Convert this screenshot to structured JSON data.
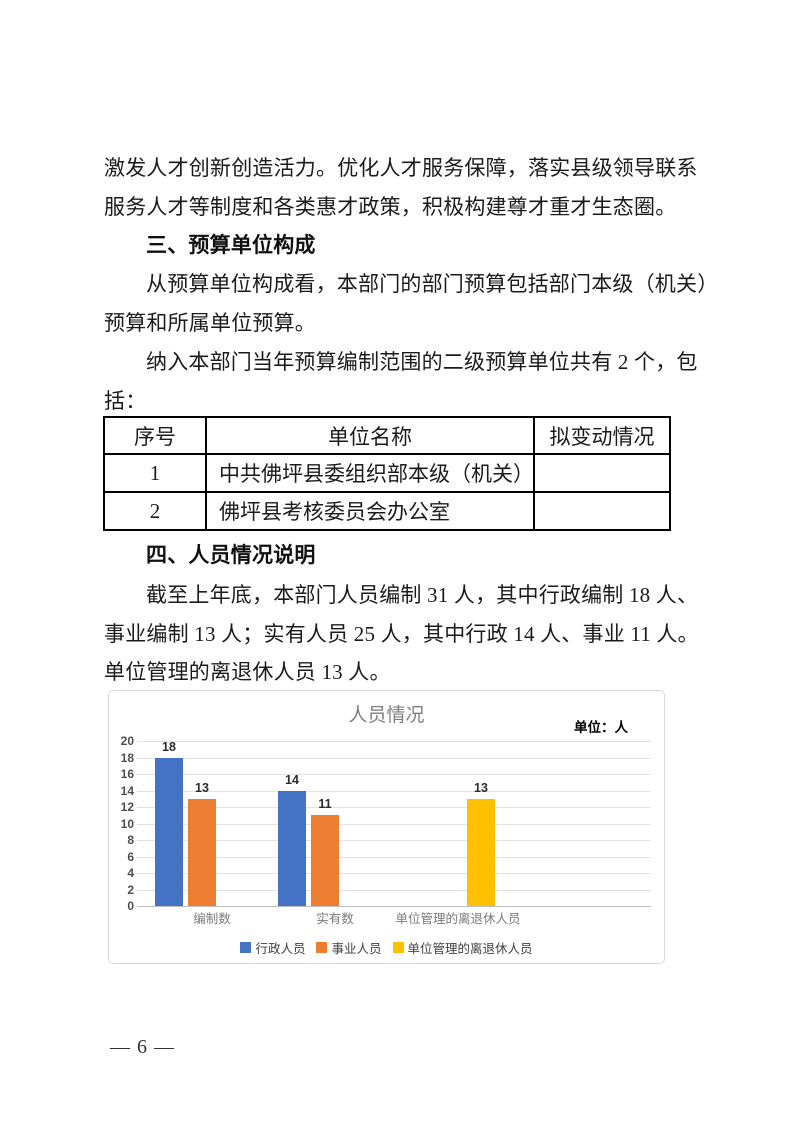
{
  "document": {
    "paragraph_top": {
      "lines": [
        "激发人才创新创造活力。优化人才服务保障，落实县级领导联系",
        "服务人才等制度和各类惠才政策，积极构建尊才重才生态圈。"
      ]
    },
    "section3": {
      "heading": "三、预算单位构成",
      "para1_lines": [
        "从预算单位构成看，本部门的部门预算包括部门本级（机关）",
        "预算和所属单位预算。"
      ],
      "para2_lines": [
        "纳入本部门当年预算编制范围的二级预算单位共有 2 个，包",
        "括："
      ]
    },
    "table": {
      "headers": [
        "序号",
        "单位名称",
        "拟变动情况"
      ],
      "rows": [
        {
          "no": "1",
          "name": "中共佛坪县委组织部本级（机关）",
          "change": ""
        },
        {
          "no": "2",
          "name": "佛坪县考核委员会办公室",
          "change": ""
        }
      ]
    },
    "section4": {
      "heading": "四、人员情况说明",
      "para_lines": [
        "截至上年底，本部门人员编制 31 人，其中行政编制 18 人、",
        "事业编制 13 人；实有人员 25 人，其中行政 14 人、事业 11 人。",
        "单位管理的离退休人员 13 人。"
      ]
    },
    "page_number": "— 6 —"
  },
  "chart_data": {
    "type": "bar",
    "title": "人员情况",
    "unit_label": "单位：人",
    "xlabel": "",
    "ylabel": "",
    "categories": [
      "编制数",
      "实有数",
      "单位管理的离退休人员"
    ],
    "series": [
      {
        "name": "行政人员",
        "color": "#4472C4",
        "values": [
          18,
          14,
          null
        ]
      },
      {
        "name": "事业人员",
        "color": "#ED7D31",
        "values": [
          13,
          11,
          null
        ]
      },
      {
        "name": "单位管理的离退休人员",
        "color": "#FFC000",
        "values": [
          null,
          null,
          13
        ]
      }
    ],
    "ylim": [
      0,
      20
    ],
    "ytick_step": 2,
    "grid": true,
    "legend_position": "bottom",
    "gridline_color": "#e2e2e2",
    "axis_line_color": "#bdbdbd"
  }
}
